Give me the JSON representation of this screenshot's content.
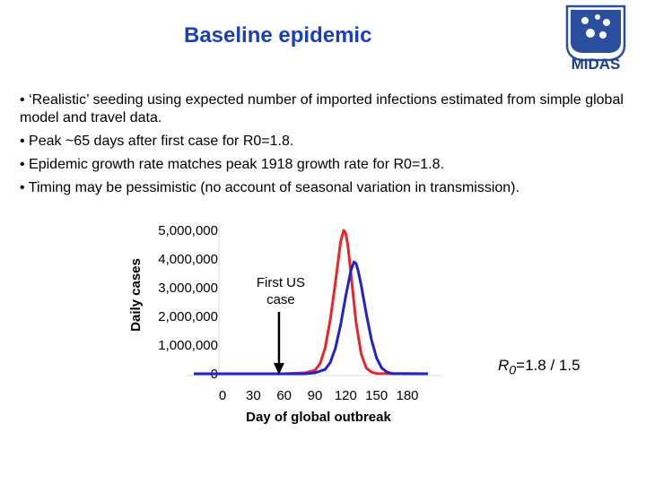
{
  "slide": {
    "title": "Baseline epidemic",
    "logo_text": "MIDAS",
    "bullets": [
      "• ‘Realistic’ seeding using expected number of imported infections estimated from simple global model and travel data.",
      "• Peak ~65 days after first case for R0=1.8.",
      "• Epidemic growth rate matches peak 1918 growth rate for R0=1.8.",
      "• Timing may be pessimistic (no account of seasonal variation in transmission)."
    ],
    "r0_label": {
      "symbol": "R",
      "subscript": "0",
      "rest": "=1.8 / 1.5"
    }
  },
  "colors": {
    "title": "#1a3fb8",
    "red_series": "#e8262a",
    "blue_series": "#2222cc",
    "logo": "#1d3f8a"
  },
  "chart_data": {
    "type": "line",
    "xlabel": "Day of global outbreak",
    "ylabel": "Daily cases",
    "xlim": [
      0,
      200
    ],
    "ylim": [
      0,
      5000000
    ],
    "xticks": [
      0,
      30,
      60,
      90,
      120,
      150,
      180
    ],
    "yticks": [
      0,
      1000000,
      2000000,
      3000000,
      4000000,
      5000000
    ],
    "ytick_labels": [
      "0",
      "1,000,000",
      "2,000,000",
      "3,000,000",
      "4,000,000",
      "5,000,000"
    ],
    "annotation": {
      "text_lines": [
        "First US",
        "case"
      ],
      "x": 55
    },
    "series": [
      {
        "color": "#e8262a",
        "x": [
          -30,
          60,
          80,
          90,
          95,
          100,
          105,
          110,
          115,
          118,
          120,
          122,
          125,
          130,
          135,
          140,
          145,
          150,
          200
        ],
        "y": [
          0,
          0,
          30000,
          120000,
          350000,
          900000,
          1900000,
          3200000,
          4600000,
          5000000,
          4900000,
          4500000,
          3500000,
          1800000,
          700000,
          200000,
          60000,
          10000,
          0
        ]
      },
      {
        "color": "#2222cc",
        "x": [
          -30,
          80,
          90,
          100,
          105,
          110,
          115,
          120,
          125,
          128,
          130,
          132,
          135,
          140,
          145,
          150,
          155,
          160,
          165,
          200
        ],
        "y": [
          0,
          0,
          30000,
          150000,
          400000,
          900000,
          1700000,
          2700000,
          3600000,
          3900000,
          3850000,
          3600000,
          3100000,
          2100000,
          1200000,
          550000,
          200000,
          60000,
          10000,
          0
        ]
      }
    ]
  }
}
